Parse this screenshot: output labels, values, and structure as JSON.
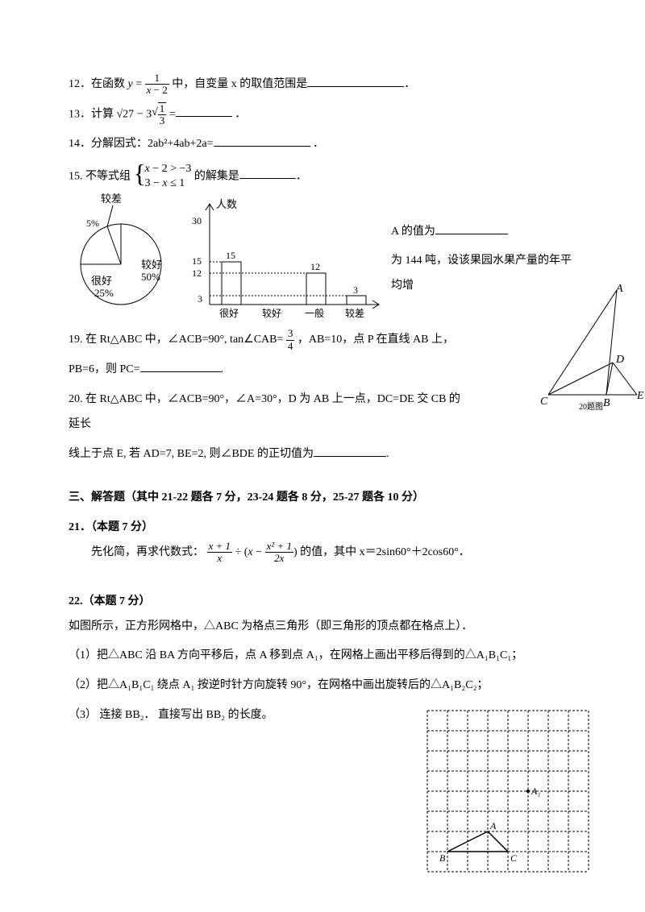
{
  "q12": {
    "num": "12",
    "pre": "．在函数 ",
    "y_eq": "y",
    "frac_num": "1",
    "frac_den_x": "x",
    "frac_den_rest": " − 2",
    "post": " 中，自变量 x 的取值范围是",
    "end": "．"
  },
  "q13": {
    "num": "13",
    "pre": "．计算 ",
    "sqrt27": "√27",
    "minus": " − 3",
    "frac_num": "1",
    "frac_den": "3",
    "eq": " =",
    "end": " ．"
  },
  "q14": {
    "num": "14",
    "text": "．分解因式：2ab²+4ab+2a=",
    "end": " ．"
  },
  "q15": {
    "num": "15",
    "pre": ". 不等式组 ",
    "line1_a": "x",
    "line1_b": " − 2 > −3",
    "line2_a": "3 − ",
    "line2_x": "x",
    "line2_b": " ≤ 1",
    "post": " 的解集是",
    "end": "．"
  },
  "pie": {
    "labels": {
      "poor": "较差",
      "poor_pct": "5%",
      "good": "较好",
      "good_pct": "50%",
      "vgood": "很好",
      "vgood_pct": "25%"
    },
    "colors": {
      "outline": "#000000",
      "fill": "#ffffff"
    }
  },
  "bar": {
    "y_label": "人数",
    "y_ticks": [
      "3",
      "12",
      "15",
      "30"
    ],
    "x_labels": [
      "很好",
      "较好",
      "一般",
      "较差"
    ],
    "bar_values": [
      15,
      0,
      12,
      3
    ],
    "bar_top_labels": [
      "15",
      "",
      "12",
      "3"
    ],
    "axis_color": "#000000",
    "dash_color": "#000000"
  },
  "q16_frag": {
    "tail1": "A 的值为",
    "tail2": "为 144 吨，设该果园水果产量的年平均增"
  },
  "q19": {
    "num": "19",
    "pre": ". 在 Rt△ABC 中，∠ACB=90°, tan∠CAB=",
    "frac_num": "3",
    "frac_den": "4",
    "mid": " ，AB=10，点 P 在直线 AB 上，",
    "line2": "PB=6，则 PC=",
    "end": "."
  },
  "q20": {
    "num": "20",
    "line1": ". 在 Rt△ABC 中，∠ACB=90°，∠A=30°，D 为 AB 上一点，DC=DE 交 CB 的延长",
    "line2a": "线上于点 E, 若 AD=7, BE=2, 则",
    "angle": "∠BDE",
    "line2b": " 的正切值为",
    "end": "."
  },
  "triangle20": {
    "labels": {
      "A": "A",
      "B": "B",
      "C": "C",
      "D": "D",
      "E": "E",
      "cap": "20题图"
    },
    "font_family": "Times New Roman",
    "font_style": "italic",
    "stroke": "#000000"
  },
  "section3": {
    "title": "三、解答题（其中 21-22 题各 7 分，23-24 题各 8 分，25-27 题各 10 分）"
  },
  "q21": {
    "title": "21．（本题 7 分）",
    "pre": "先化简，再求代数式：",
    "f1_num": "x + 1",
    "f1_den": "x",
    "div": " ÷ (",
    "x": "x",
    "minus": " − ",
    "f2_num": "x² + 1",
    "f2_den": "2x",
    "close": ")",
    "post": " 的值，其中 x＝2sin60°＋2cos60°．"
  },
  "q22": {
    "title": "22.（本题 7 分）",
    "line1": "如图所示，正方形网格中，△ABC 为格点三角形（即三角形的顶点都在格点上）．",
    "line2": "（1）把△ABC 沿 BA 方向平移后，点 A 移到点 A₁，在网格上画出平移后得到的△A₁B₁C₁；",
    "line3": "（2）把△A₁B₁C₁ 绕点 A₁ 按逆时针方向旋转 90°，在网格中画出旋转后的△A₁B₂C₂；",
    "line4": "（3） 连接 BB₂．  直接写出 BB₂ 的长度。"
  },
  "grid": {
    "size": 8,
    "cell": 25,
    "stroke": "#000000",
    "labels": {
      "A": "A",
      "B": "B",
      "C": "C",
      "A1": "A₁"
    },
    "A": [
      3,
      6
    ],
    "B": [
      1,
      7
    ],
    "C": [
      4,
      7
    ],
    "A1": [
      5,
      4
    ]
  }
}
